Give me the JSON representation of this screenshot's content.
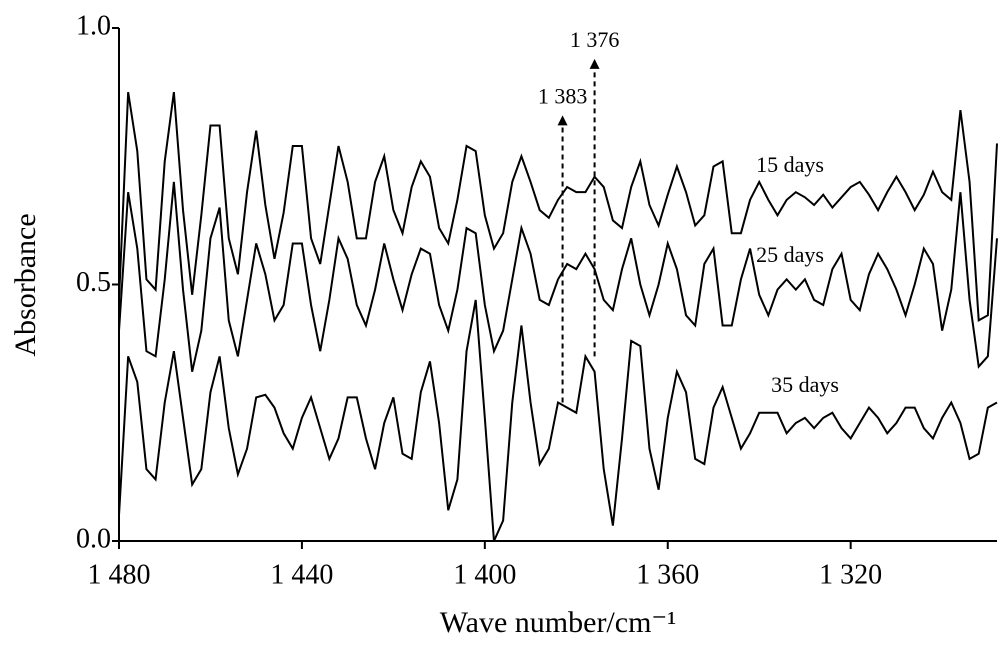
{
  "chart_data": {
    "type": "line",
    "x_label": "Wave number/cm⁻¹",
    "y_label": "Absorbance",
    "x": [
      1480,
      1478,
      1476,
      1474,
      1472,
      1470,
      1468,
      1466,
      1464,
      1462,
      1460,
      1458,
      1456,
      1454,
      1452,
      1450,
      1448,
      1446,
      1444,
      1442,
      1440,
      1438,
      1436,
      1434,
      1432,
      1430,
      1428,
      1426,
      1424,
      1422,
      1420,
      1418,
      1416,
      1414,
      1412,
      1410,
      1408,
      1406,
      1404,
      1402,
      1400,
      1398,
      1396,
      1394,
      1392,
      1390,
      1388,
      1386,
      1384,
      1382,
      1380,
      1378,
      1376,
      1374,
      1372,
      1370,
      1368,
      1366,
      1364,
      1362,
      1360,
      1358,
      1356,
      1354,
      1352,
      1350,
      1348,
      1346,
      1344,
      1342,
      1340,
      1338,
      1336,
      1334,
      1332,
      1330,
      1328,
      1326,
      1324,
      1322,
      1320,
      1318,
      1316,
      1314,
      1312,
      1310,
      1308,
      1306,
      1304,
      1302,
      1300,
      1298,
      1296,
      1294,
      1292,
      1290,
      1288
    ],
    "series": [
      {
        "name": "15 days",
        "color": "#000000",
        "values": [
          0.47,
          0.875,
          0.76,
          0.51,
          0.49,
          0.74,
          0.875,
          0.645,
          0.48,
          0.635,
          0.81,
          0.81,
          0.59,
          0.52,
          0.68,
          0.8,
          0.655,
          0.55,
          0.64,
          0.77,
          0.77,
          0.59,
          0.54,
          0.655,
          0.77,
          0.7,
          0.59,
          0.59,
          0.7,
          0.75,
          0.645,
          0.6,
          0.69,
          0.74,
          0.71,
          0.61,
          0.58,
          0.665,
          0.77,
          0.76,
          0.635,
          0.57,
          0.6,
          0.7,
          0.75,
          0.7,
          0.645,
          0.63,
          0.665,
          0.69,
          0.68,
          0.68,
          0.71,
          0.69,
          0.625,
          0.61,
          0.69,
          0.74,
          0.655,
          0.615,
          0.675,
          0.73,
          0.68,
          0.615,
          0.635,
          0.73,
          0.74,
          0.6,
          0.6,
          0.665,
          0.7,
          0.665,
          0.635,
          0.665,
          0.68,
          0.67,
          0.655,
          0.675,
          0.65,
          0.67,
          0.69,
          0.7,
          0.675,
          0.645,
          0.68,
          0.71,
          0.68,
          0.645,
          0.675,
          0.72,
          0.68,
          0.665,
          0.84,
          0.7,
          0.43,
          0.44,
          0.775
        ]
      },
      {
        "name": "25 days",
        "color": "#000000",
        "values": [
          0.41,
          0.68,
          0.57,
          0.37,
          0.36,
          0.51,
          0.7,
          0.49,
          0.33,
          0.41,
          0.59,
          0.65,
          0.43,
          0.36,
          0.47,
          0.58,
          0.52,
          0.43,
          0.46,
          0.58,
          0.58,
          0.46,
          0.37,
          0.47,
          0.59,
          0.55,
          0.46,
          0.42,
          0.49,
          0.58,
          0.51,
          0.45,
          0.52,
          0.57,
          0.56,
          0.46,
          0.41,
          0.49,
          0.61,
          0.6,
          0.46,
          0.37,
          0.41,
          0.51,
          0.61,
          0.56,
          0.47,
          0.46,
          0.51,
          0.54,
          0.53,
          0.56,
          0.53,
          0.47,
          0.45,
          0.53,
          0.59,
          0.5,
          0.44,
          0.5,
          0.58,
          0.53,
          0.44,
          0.42,
          0.54,
          0.57,
          0.42,
          0.42,
          0.51,
          0.57,
          0.48,
          0.44,
          0.49,
          0.51,
          0.49,
          0.51,
          0.47,
          0.46,
          0.53,
          0.56,
          0.47,
          0.45,
          0.52,
          0.56,
          0.53,
          0.49,
          0.44,
          0.5,
          0.57,
          0.54,
          0.41,
          0.49,
          0.68,
          0.47,
          0.34,
          0.36,
          0.59
        ]
      },
      {
        "name": "35 days",
        "color": "#000000",
        "values": [
          0.05,
          0.36,
          0.31,
          0.14,
          0.12,
          0.27,
          0.37,
          0.24,
          0.11,
          0.14,
          0.29,
          0.36,
          0.22,
          0.13,
          0.18,
          0.28,
          0.285,
          0.26,
          0.21,
          0.18,
          0.24,
          0.28,
          0.22,
          0.16,
          0.2,
          0.28,
          0.28,
          0.2,
          0.14,
          0.23,
          0.28,
          0.17,
          0.16,
          0.29,
          0.35,
          0.23,
          0.06,
          0.12,
          0.37,
          0.47,
          0.24,
          0,
          0.04,
          0.27,
          0.42,
          0.27,
          0.15,
          0.18,
          0.27,
          0.26,
          0.25,
          0.36,
          0.33,
          0.14,
          0.03,
          0.2,
          0.39,
          0.38,
          0.18,
          0.1,
          0.24,
          0.33,
          0.29,
          0.16,
          0.15,
          0.26,
          0.3,
          0.24,
          0.18,
          0.21,
          0.25,
          0.25,
          0.25,
          0.21,
          0.23,
          0.24,
          0.22,
          0.24,
          0.25,
          0.22,
          0.2,
          0.23,
          0.26,
          0.24,
          0.21,
          0.23,
          0.26,
          0.26,
          0.22,
          0.2,
          0.24,
          0.27,
          0.23,
          0.16,
          0.17,
          0.26,
          0.27
        ]
      }
    ],
    "xlim": [
      1480,
      1288
    ],
    "xticks": [
      {
        "value": 1480,
        "label": "1 480"
      },
      {
        "value": 1440,
        "label": "1 440"
      },
      {
        "value": 1400,
        "label": "1 400"
      },
      {
        "value": 1360,
        "label": "1 360"
      },
      {
        "value": 1320,
        "label": "1 320"
      }
    ],
    "ylim": [
      0,
      1
    ],
    "yticks": [
      {
        "value": 0,
        "label": "0.0"
      },
      0.5,
      {
        "value": 1,
        "label": "1.0"
      }
    ],
    "grid": false,
    "legend": "inline",
    "annotations": [
      {
        "text": "1 383",
        "x": 1383,
        "y_from": 0.27,
        "y_to": 0.82
      },
      {
        "text": "1 376",
        "x": 1376,
        "y_from": 0.36,
        "y_to": 0.93
      }
    ]
  }
}
